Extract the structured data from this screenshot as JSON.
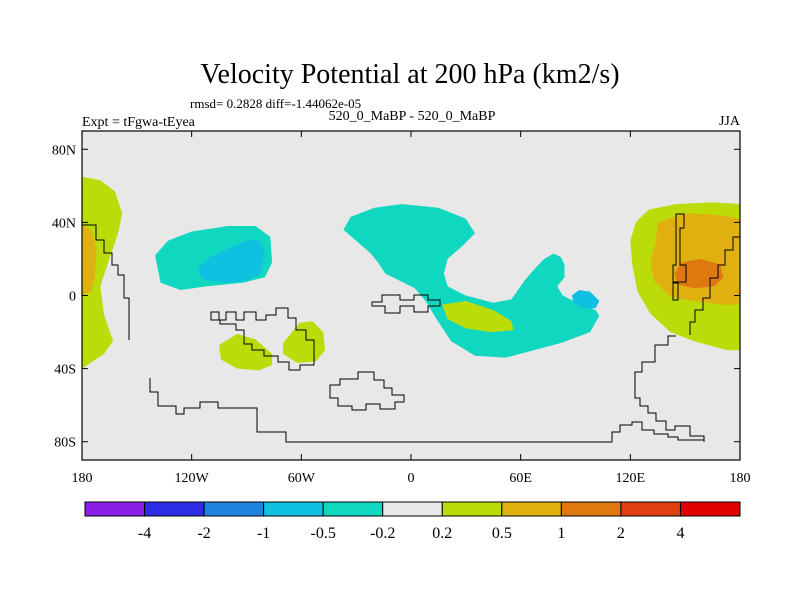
{
  "chart_data": {
    "type": "heatmap",
    "title": "Velocity Potential at 200 hPa (km2/s)",
    "subtitle_stats": "rmsd= 0.2828 diff=-1.44062e-05",
    "left_label": "Expt = tFgwa-tEyea",
    "center_label": "520_0_MaBP - 520_0_MaBP",
    "right_label": "JJA",
    "x_range": [
      -180,
      180
    ],
    "y_range": [
      -90,
      90
    ],
    "x_ticks": [
      {
        "value": -180,
        "label": "180"
      },
      {
        "value": -120,
        "label": "120W"
      },
      {
        "value": -60,
        "label": "60W"
      },
      {
        "value": 0,
        "label": "0"
      },
      {
        "value": 60,
        "label": "60E"
      },
      {
        "value": 120,
        "label": "120E"
      },
      {
        "value": 180,
        "label": "180"
      }
    ],
    "y_ticks": [
      {
        "value": 80,
        "label": "80N"
      },
      {
        "value": 40,
        "label": "40N"
      },
      {
        "value": 0,
        "label": "0"
      },
      {
        "value": -40,
        "label": "40S"
      },
      {
        "value": -80,
        "label": "80S"
      }
    ],
    "colorbar": {
      "colors": [
        "#8a20e8",
        "#2d2de6",
        "#1e84e0",
        "#10c0e0",
        "#10d8c0",
        "#e8e8e8",
        "#bcdc0a",
        "#e0b010",
        "#e07810",
        "#e04010",
        "#e00000"
      ],
      "labels": [
        "-4",
        "-2",
        "-1",
        "-0.5",
        "-0.2",
        "0.2",
        "0.5",
        "1",
        "2",
        "4"
      ]
    },
    "background_color": "#e8e8e8",
    "regions": [
      {
        "name": "north-pacific-east-low",
        "level": "-0.2",
        "color": "#10d8c0",
        "points": [
          [
            -140,
            22
          ],
          [
            -133,
            30
          ],
          [
            -120,
            35
          ],
          [
            -100,
            38
          ],
          [
            -85,
            38
          ],
          [
            -77,
            32
          ],
          [
            -76,
            18
          ],
          [
            -80,
            10
          ],
          [
            -92,
            7
          ],
          [
            -112,
            5
          ],
          [
            -126,
            3
          ],
          [
            -137,
            7
          ]
        ]
      },
      {
        "name": "central-america-low-core",
        "level": "-0.5",
        "color": "#10c0e0",
        "points": [
          [
            -117,
            15
          ],
          [
            -110,
            21
          ],
          [
            -99,
            26
          ],
          [
            -90,
            30
          ],
          [
            -84,
            31
          ],
          [
            -80,
            25
          ],
          [
            -82,
            12
          ],
          [
            -90,
            8
          ],
          [
            -102,
            7
          ],
          [
            -114,
            9
          ]
        ]
      },
      {
        "name": "atlantic-africa-asia-low",
        "level": "-0.2",
        "color": "#10d8c0",
        "points": [
          [
            -33,
            43
          ],
          [
            -20,
            48
          ],
          [
            -5,
            50
          ],
          [
            15,
            48
          ],
          [
            30,
            42
          ],
          [
            35,
            34
          ],
          [
            28,
            27
          ],
          [
            20,
            20
          ],
          [
            18,
            12
          ],
          [
            20,
            5
          ],
          [
            30,
            0
          ],
          [
            45,
            -4
          ],
          [
            55,
            -2
          ],
          [
            62,
            8
          ],
          [
            68,
            15
          ],
          [
            73,
            20
          ],
          [
            78,
            23
          ],
          [
            82,
            21
          ],
          [
            84,
            17
          ],
          [
            84,
            10
          ],
          [
            80,
            5
          ],
          [
            83,
            0
          ],
          [
            93,
            -5
          ],
          [
            101,
            -8
          ],
          [
            103,
            -11
          ],
          [
            98,
            -20
          ],
          [
            82,
            -26
          ],
          [
            67,
            -30
          ],
          [
            52,
            -34
          ],
          [
            35,
            -33
          ],
          [
            22,
            -25
          ],
          [
            14,
            -13
          ],
          [
            8,
            -3
          ],
          [
            2,
            4
          ],
          [
            -6,
            8
          ],
          [
            -14,
            12
          ],
          [
            -18,
            18
          ],
          [
            -22,
            23
          ],
          [
            -30,
            30
          ],
          [
            -37,
            36
          ]
        ]
      },
      {
        "name": "indian-ocean-low-core",
        "level": "-0.5",
        "color": "#10c0e0",
        "points": [
          [
            88,
            0
          ],
          [
            92,
            3
          ],
          [
            98,
            2
          ],
          [
            103,
            -3
          ],
          [
            101,
            -7
          ],
          [
            94,
            -7
          ],
          [
            89,
            -4
          ]
        ]
      },
      {
        "name": "east-asia-pacific-high",
        "level": "0.2",
        "color": "#bcdc0a",
        "points": [
          [
            123,
            40
          ],
          [
            130,
            47
          ],
          [
            145,
            50
          ],
          [
            165,
            51
          ],
          [
            180,
            50
          ],
          [
            180,
            -30
          ],
          [
            173,
            -30
          ],
          [
            155,
            -25
          ],
          [
            142,
            -20
          ],
          [
            131,
            -10
          ],
          [
            124,
            2
          ],
          [
            121,
            17
          ],
          [
            120,
            30
          ]
        ]
      },
      {
        "name": "asia-pacific-high-core",
        "level": "0.5",
        "color": "#e0b010",
        "points": [
          [
            134,
            30
          ],
          [
            135,
            40
          ],
          [
            150,
            45
          ],
          [
            168,
            44
          ],
          [
            180,
            42
          ],
          [
            180,
            -5
          ],
          [
            170,
            -5
          ],
          [
            155,
            -3
          ],
          [
            142,
            -1
          ],
          [
            133,
            8
          ],
          [
            131,
            18
          ]
        ]
      },
      {
        "name": "pacific-high-max",
        "level": "1",
        "color": "#e07810",
        "points": [
          [
            144,
            12
          ],
          [
            148,
            18
          ],
          [
            158,
            20
          ],
          [
            169,
            17
          ],
          [
            171,
            10
          ],
          [
            166,
            5
          ],
          [
            155,
            4
          ],
          [
            146,
            6
          ]
        ]
      },
      {
        "name": "west-pacific-high",
        "level": "0.2",
        "color": "#bcdc0a",
        "points": [
          [
            -180,
            65
          ],
          [
            -170,
            63
          ],
          [
            -162,
            57
          ],
          [
            -158,
            45
          ],
          [
            -160,
            35
          ],
          [
            -165,
            20
          ],
          [
            -170,
            5
          ],
          [
            -168,
            -10
          ],
          [
            -163,
            -25
          ],
          [
            -168,
            -32
          ],
          [
            -180,
            -40
          ]
        ]
      },
      {
        "name": "west-pacific-high-core",
        "level": "0.5",
        "color": "#e0b010",
        "points": [
          [
            -180,
            38
          ],
          [
            -175,
            36
          ],
          [
            -172,
            25
          ],
          [
            -173,
            10
          ],
          [
            -175,
            2
          ],
          [
            -180,
            0
          ]
        ]
      },
      {
        "name": "south-america-high-a",
        "level": "0.2",
        "color": "#bcdc0a",
        "points": [
          [
            -105,
            -27
          ],
          [
            -95,
            -21
          ],
          [
            -85,
            -24
          ],
          [
            -76,
            -32
          ],
          [
            -76,
            -38
          ],
          [
            -83,
            -41
          ],
          [
            -95,
            -40
          ],
          [
            -104,
            -35
          ]
        ]
      },
      {
        "name": "south-america-high-b",
        "level": "0.2",
        "color": "#bcdc0a",
        "points": [
          [
            -70,
            -26
          ],
          [
            -61,
            -15
          ],
          [
            -54,
            -14
          ],
          [
            -48,
            -20
          ],
          [
            -47,
            -30
          ],
          [
            -52,
            -36
          ],
          [
            -62,
            -37
          ],
          [
            -70,
            -32
          ]
        ]
      },
      {
        "name": "africa-high",
        "level": "0.2",
        "color": "#bcdc0a",
        "points": [
          [
            17,
            -5
          ],
          [
            30,
            -3
          ],
          [
            45,
            -8
          ],
          [
            55,
            -14
          ],
          [
            56,
            -19
          ],
          [
            44,
            -20
          ],
          [
            30,
            -18
          ],
          [
            20,
            -13
          ]
        ]
      }
    ]
  }
}
